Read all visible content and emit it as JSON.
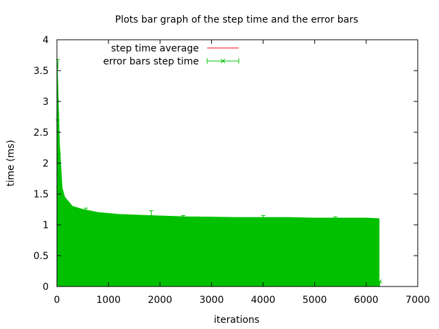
{
  "chart_data": {
    "type": "line",
    "title": "Plots bar graph of the step time and the error bars",
    "xlabel": "iterations",
    "ylabel": "time (ms)",
    "xlim": [
      0,
      7000
    ],
    "ylim": [
      0,
      4
    ],
    "x_ticks": [
      0,
      1000,
      2000,
      3000,
      4000,
      5000,
      6000,
      7000
    ],
    "y_ticks": [
      0,
      0.5,
      1,
      1.5,
      2,
      2.5,
      3,
      3.5,
      4
    ],
    "x_tick_labels": [
      "0",
      "1000",
      "2000",
      "3000",
      "4000",
      "5000",
      "6000",
      "7000"
    ],
    "y_tick_labels": [
      "0",
      "0.5",
      "1",
      "1.5",
      "2",
      "2.5",
      "3",
      "3.5",
      "4"
    ],
    "grid": false,
    "legend_position": "top-left",
    "series": [
      {
        "name": "step time average",
        "style": "line",
        "color": "#ff0000",
        "x": [
          0,
          6250
        ],
        "y": [
          0,
          0
        ]
      },
      {
        "name": "error bars step time",
        "style": "errorbars",
        "color": "#00c000",
        "x_range": [
          0,
          6250
        ],
        "error_extent_profile": {
          "x": [
            0,
            20,
            50,
            100,
            150,
            200,
            300,
            500,
            800,
            1200,
            1800,
            2500,
            3500,
            4500,
            5000,
            5500,
            6000,
            6250
          ],
          "upper": [
            3.7,
            3.2,
            2.3,
            1.6,
            1.45,
            1.4,
            1.3,
            1.25,
            1.2,
            1.17,
            1.15,
            1.13,
            1.12,
            1.12,
            1.11,
            1.11,
            1.11,
            1.1
          ]
        },
        "outlier_caps": [
          {
            "x": 20,
            "y": 3.68
          },
          {
            "x": 10,
            "y": 2.7
          },
          {
            "x": 40,
            "y": 2.15
          },
          {
            "x": 30,
            "y": 1.62
          },
          {
            "x": 560,
            "y": 1.27
          },
          {
            "x": 1830,
            "y": 1.23
          },
          {
            "x": 2450,
            "y": 1.15
          },
          {
            "x": 4000,
            "y": 1.15
          },
          {
            "x": 5400,
            "y": 1.13
          },
          {
            "x": 6260,
            "y": 0.08
          }
        ]
      }
    ]
  }
}
